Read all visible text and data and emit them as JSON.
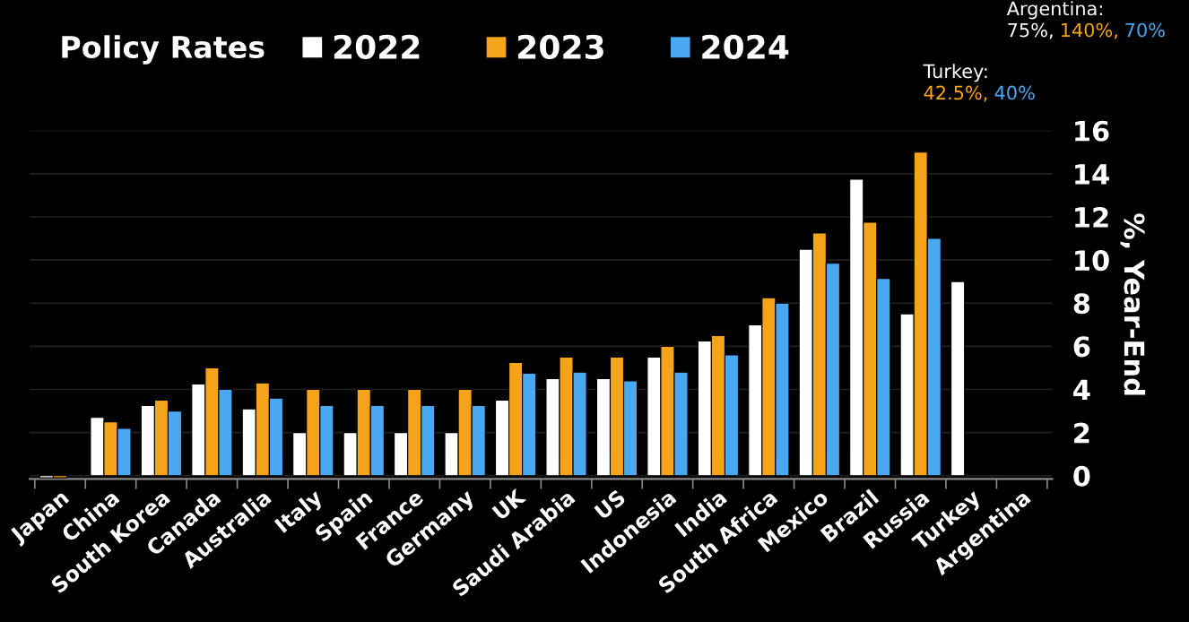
{
  "chart_data": {
    "type": "bar",
    "title": "Policy Rates",
    "ylabel": "%, Year-End",
    "categories": [
      "Japan",
      "China",
      "South Korea",
      "Canada",
      "Australia",
      "Italy",
      "Spain",
      "France",
      "Germany",
      "UK",
      "Saudi Arabia",
      "US",
      "Indonesia",
      "India",
      "South Africa",
      "Mexico",
      "Brazil",
      "Russia",
      "Turkey",
      "Argentina"
    ],
    "series": [
      {
        "name": "2022",
        "color": "#ffffff",
        "values": [
          -0.1,
          2.7,
          3.25,
          4.25,
          3.1,
          2.0,
          2.0,
          2.0,
          2.0,
          3.5,
          4.5,
          4.5,
          5.5,
          6.25,
          7.0,
          10.5,
          13.75,
          7.5,
          9.0,
          null
        ]
      },
      {
        "name": "2023",
        "color": "#f5a31a",
        "values": [
          -0.1,
          2.5,
          3.5,
          5.0,
          4.3,
          4.0,
          4.0,
          4.0,
          4.0,
          5.25,
          5.5,
          5.5,
          6.0,
          6.5,
          8.25,
          11.25,
          11.75,
          15.0,
          null,
          null
        ]
      },
      {
        "name": "2024",
        "color": "#4aa8f0",
        "values": [
          null,
          2.2,
          3.0,
          4.0,
          3.6,
          3.25,
          3.25,
          3.25,
          3.25,
          4.75,
          4.8,
          4.4,
          4.8,
          5.6,
          8.0,
          9.85,
          9.15,
          11.0,
          null,
          null
        ]
      }
    ],
    "ylim": [
      -0.15,
      16
    ],
    "yticks": [
      0,
      2,
      4,
      6,
      8,
      10,
      12,
      14,
      16
    ],
    "grid": "y",
    "legend": "top",
    "annotations": [
      "Turkey:",
      "42.5%, 40%",
      "Argentina:",
      "75%, 140%, 70%"
    ]
  }
}
